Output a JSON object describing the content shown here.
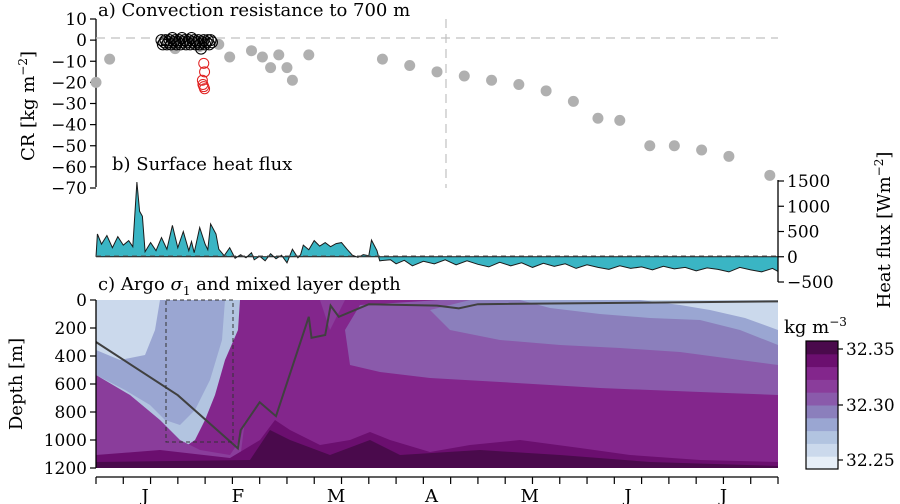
{
  "chart_data": [
    {
      "type": "scatter",
      "title": "a) Convection resistance to 700 m",
      "ylabel": "CR [kg m",
      "ylabel_sup": "−2",
      "ylabel_end": "]",
      "ylim": [
        -70,
        10
      ],
      "yticks": [
        10,
        0,
        -10,
        -20,
        -30,
        -40,
        -50,
        -60,
        -70
      ],
      "ytick_labels": [
        "10",
        "0",
        "−10",
        "−20",
        "−30",
        "−40",
        "−50",
        "−60",
        "−70"
      ],
      "colors": {
        "profiles": "#b0b0b0",
        "glider": "#000000",
        "glider_deep": "#e02020"
      },
      "series": [
        {
          "style": "filled-gray",
          "points": [
            [
              0.0,
              -20
            ],
            [
              0.05,
              -9
            ],
            [
              0.29,
              -4
            ],
            [
              0.38,
              -3
            ],
            [
              0.45,
              -2
            ],
            [
              0.49,
              -8
            ],
            [
              0.57,
              -5
            ],
            [
              0.61,
              -8
            ],
            [
              0.64,
              -13
            ],
            [
              0.67,
              -7
            ],
            [
              0.7,
              -13
            ],
            [
              0.78,
              -7
            ],
            [
              0.72,
              -19
            ],
            [
              1.05,
              -9
            ],
            [
              1.15,
              -12
            ],
            [
              1.25,
              -15
            ],
            [
              1.35,
              -17
            ],
            [
              1.45,
              -19
            ],
            [
              1.55,
              -21
            ],
            [
              1.65,
              -24
            ],
            [
              1.75,
              -29
            ],
            [
              1.84,
              -37
            ],
            [
              1.92,
              -38
            ],
            [
              2.03,
              -50
            ],
            [
              2.12,
              -50
            ],
            [
              2.22,
              -52
            ],
            [
              2.32,
              -55
            ],
            [
              2.47,
              -64
            ]
          ]
        },
        {
          "style": "open-black",
          "points": [
            [
              0.24,
              0
            ],
            [
              0.245,
              -2
            ],
            [
              0.25,
              -1
            ],
            [
              0.255,
              0
            ],
            [
              0.26,
              -2
            ],
            [
              0.265,
              -1
            ],
            [
              0.27,
              0
            ],
            [
              0.275,
              -2
            ],
            [
              0.28,
              1
            ],
            [
              0.285,
              -1
            ],
            [
              0.29,
              0
            ],
            [
              0.295,
              -2
            ],
            [
              0.3,
              -1
            ],
            [
              0.305,
              0
            ],
            [
              0.31,
              -2
            ],
            [
              0.315,
              1
            ],
            [
              0.32,
              -1
            ],
            [
              0.325,
              0
            ],
            [
              0.33,
              -2
            ],
            [
              0.335,
              -1
            ],
            [
              0.34,
              0
            ],
            [
              0.345,
              -2
            ],
            [
              0.35,
              1
            ],
            [
              0.355,
              -1
            ],
            [
              0.36,
              0
            ],
            [
              0.365,
              -2
            ],
            [
              0.37,
              -1
            ],
            [
              0.375,
              0
            ],
            [
              0.38,
              -2
            ],
            [
              0.385,
              -4
            ],
            [
              0.39,
              -1
            ],
            [
              0.395,
              0
            ],
            [
              0.4,
              -2
            ],
            [
              0.405,
              -1
            ],
            [
              0.41,
              0
            ],
            [
              0.415,
              -2
            ],
            [
              0.42,
              0
            ],
            [
              0.425,
              -1
            ]
          ]
        },
        {
          "style": "open-red",
          "points": [
            [
              0.395,
              -11
            ],
            [
              0.398,
              -15
            ],
            [
              0.39,
              -19
            ],
            [
              0.392,
              -21
            ],
            [
              0.395,
              -22
            ],
            [
              0.398,
              -23
            ]
          ]
        }
      ]
    },
    {
      "type": "area",
      "title": "b) Surface heat flux",
      "ylabel": "Heat flux [Wm",
      "ylabel_sup": "−2",
      "ylabel_end": "]",
      "ylim": [
        -500,
        1500
      ],
      "yticks": [
        1500,
        1000,
        500,
        0,
        -500
      ],
      "ytick_labels": [
        "1500",
        "1000",
        "500",
        "0",
        "−500"
      ],
      "colors": {
        "fill": "#3ab5c4",
        "line": "#1a1a1a"
      },
      "series": [
        {
          "points": [
            [
              0,
              0
            ],
            [
              0.005,
              450
            ],
            [
              0.02,
              250
            ],
            [
              0.04,
              420
            ],
            [
              0.06,
              180
            ],
            [
              0.08,
              400
            ],
            [
              0.1,
              230
            ],
            [
              0.12,
              320
            ],
            [
              0.135,
              200
            ],
            [
              0.15,
              1480
            ],
            [
              0.16,
              900
            ],
            [
              0.17,
              800
            ],
            [
              0.18,
              100
            ],
            [
              0.2,
              280
            ],
            [
              0.22,
              120
            ],
            [
              0.24,
              380
            ],
            [
              0.26,
              150
            ],
            [
              0.28,
              620
            ],
            [
              0.3,
              180
            ],
            [
              0.32,
              500
            ],
            [
              0.34,
              120
            ],
            [
              0.35,
              300
            ],
            [
              0.36,
              80
            ],
            [
              0.38,
              580
            ],
            [
              0.4,
              250
            ],
            [
              0.41,
              140
            ],
            [
              0.42,
              650
            ],
            [
              0.44,
              450
            ],
            [
              0.45,
              150
            ],
            [
              0.47,
              20
            ],
            [
              0.49,
              180
            ],
            [
              0.51,
              -30
            ],
            [
              0.53,
              40
            ],
            [
              0.55,
              -20
            ],
            [
              0.57,
              80
            ],
            [
              0.58,
              -60
            ],
            [
              0.6,
              10
            ],
            [
              0.62,
              -80
            ],
            [
              0.64,
              60
            ],
            [
              0.66,
              -40
            ],
            [
              0.68,
              30
            ],
            [
              0.7,
              -120
            ],
            [
              0.72,
              150
            ],
            [
              0.74,
              -20
            ],
            [
              0.75,
              40
            ],
            [
              0.76,
              230
            ],
            [
              0.78,
              140
            ],
            [
              0.8,
              320
            ],
            [
              0.82,
              210
            ],
            [
              0.84,
              280
            ],
            [
              0.86,
              200
            ],
            [
              0.88,
              260
            ],
            [
              0.9,
              280
            ],
            [
              0.92,
              150
            ],
            [
              0.94,
              30
            ],
            [
              0.96,
              -10
            ],
            [
              0.98,
              40
            ],
            [
              1.0,
              20
            ],
            [
              1.01,
              330
            ],
            [
              1.03,
              120
            ],
            [
              1.04,
              -80
            ],
            [
              1.08,
              -60
            ],
            [
              1.1,
              -140
            ],
            [
              1.13,
              -70
            ],
            [
              1.16,
              -180
            ],
            [
              1.2,
              -90
            ],
            [
              1.24,
              -140
            ],
            [
              1.28,
              -60
            ],
            [
              1.32,
              -160
            ],
            [
              1.36,
              -80
            ],
            [
              1.4,
              -150
            ],
            [
              1.44,
              -200
            ],
            [
              1.48,
              -110
            ],
            [
              1.52,
              -180
            ],
            [
              1.56,
              -120
            ],
            [
              1.6,
              -210
            ],
            [
              1.64,
              -130
            ],
            [
              1.68,
              -190
            ],
            [
              1.72,
              -140
            ],
            [
              1.76,
              -230
            ],
            [
              1.8,
              -160
            ],
            [
              1.84,
              -210
            ],
            [
              1.88,
              -250
            ],
            [
              1.92,
              -180
            ],
            [
              1.96,
              -230
            ],
            [
              2.0,
              -200
            ],
            [
              2.04,
              -260
            ],
            [
              2.08,
              -190
            ],
            [
              2.12,
              -240
            ],
            [
              2.16,
              -210
            ],
            [
              2.2,
              -280
            ],
            [
              2.24,
              -220
            ],
            [
              2.28,
              -250
            ],
            [
              2.32,
              -300
            ],
            [
              2.36,
              -210
            ],
            [
              2.4,
              -260
            ],
            [
              2.44,
              -300
            ],
            [
              2.48,
              -230
            ],
            [
              2.5,
              -290
            ]
          ]
        }
      ]
    },
    {
      "type": "heatmap",
      "title": "c) Argo ",
      "title_sigma": "σ",
      "title_sub": "1",
      "title_end": " and mixed layer depth",
      "ylabel": "Depth [m]",
      "ylim": [
        1200,
        0
      ],
      "yticks": [
        0,
        200,
        400,
        600,
        800,
        1000,
        1200
      ],
      "ytick_labels": [
        "0",
        "200",
        "400",
        "600",
        "800",
        "1000",
        "1200"
      ],
      "colorbar": {
        "label": "kg m",
        "label_sup": "−3",
        "ticks": [
          "32.35",
          "32.30",
          "32.25"
        ],
        "levels": [
          "#e6eef7",
          "#cbd9ec",
          "#b2c4e0",
          "#9aa6d2",
          "#8b7fbc",
          "#8a5aab",
          "#8a3d9b",
          "#83268c",
          "#6b0f6f",
          "#4a0a4c"
        ]
      },
      "colors": {
        "mld_line": "#404040",
        "box": "#333333"
      },
      "mixed_layer_depth": [
        [
          0.0,
          300
        ],
        [
          0.3,
          680
        ],
        [
          0.52,
          1060
        ],
        [
          0.53,
          930
        ],
        [
          0.6,
          730
        ],
        [
          0.66,
          830
        ],
        [
          0.78,
          120
        ],
        [
          0.79,
          270
        ],
        [
          0.84,
          250
        ],
        [
          0.86,
          40
        ],
        [
          0.89,
          120
        ],
        [
          1.0,
          30
        ],
        [
          1.25,
          40
        ],
        [
          1.33,
          60
        ],
        [
          1.4,
          30
        ],
        [
          2.5,
          10
        ]
      ]
    }
  ],
  "x_axis": {
    "range": [
      0,
      2.5
    ],
    "month_labels": [
      "J",
      "F",
      "M",
      "A",
      "M",
      "J",
      "J"
    ],
    "month_positions": [
      0.18,
      0.52,
      0.88,
      1.23,
      1.59,
      1.95,
      2.3
    ]
  }
}
